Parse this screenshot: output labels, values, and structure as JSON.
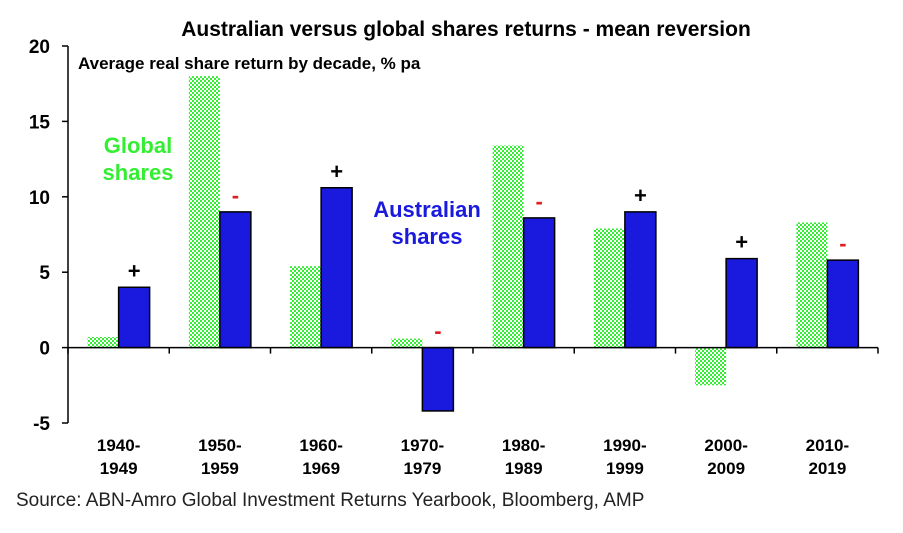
{
  "chart_data": {
    "type": "bar",
    "title": "Australian versus global shares returns - mean reversion",
    "subtitle": "Average real share return by decade,  % pa",
    "categories": [
      [
        "1940-",
        "1949"
      ],
      [
        "1950-",
        "1959"
      ],
      [
        "1960-",
        "1969"
      ],
      [
        "1970-",
        "1979"
      ],
      [
        "1980-",
        "1989"
      ],
      [
        "1990-",
        "1999"
      ],
      [
        "2000-",
        "2009"
      ],
      [
        "2010-",
        "2019"
      ]
    ],
    "series": [
      {
        "name": "Global shares",
        "name_lines": [
          "Global",
          "shares"
        ],
        "color": "#33ee33",
        "values": [
          0.7,
          18.0,
          5.4,
          0.6,
          13.4,
          7.9,
          -2.5,
          8.3
        ]
      },
      {
        "name": "Australian shares",
        "name_lines": [
          "Australian",
          "shares"
        ],
        "color": "#1a1adf",
        "values": [
          4.0,
          9.0,
          10.6,
          -4.2,
          8.6,
          9.0,
          5.9,
          5.8
        ]
      }
    ],
    "annotations": [
      "+",
      "-",
      "+",
      "-",
      "-",
      "+",
      "+",
      "-"
    ],
    "annotation_colors": {
      "+": "#000000",
      "-": "#e02020"
    },
    "ylim": [
      -5,
      20
    ],
    "yticks": [
      20,
      15,
      10,
      5,
      0,
      -5
    ],
    "xlabel": "",
    "ylabel": "",
    "grid": false
  },
  "source": "Source: ABN-Amro Global Investment Returns Yearbook, Bloomberg, AMP"
}
